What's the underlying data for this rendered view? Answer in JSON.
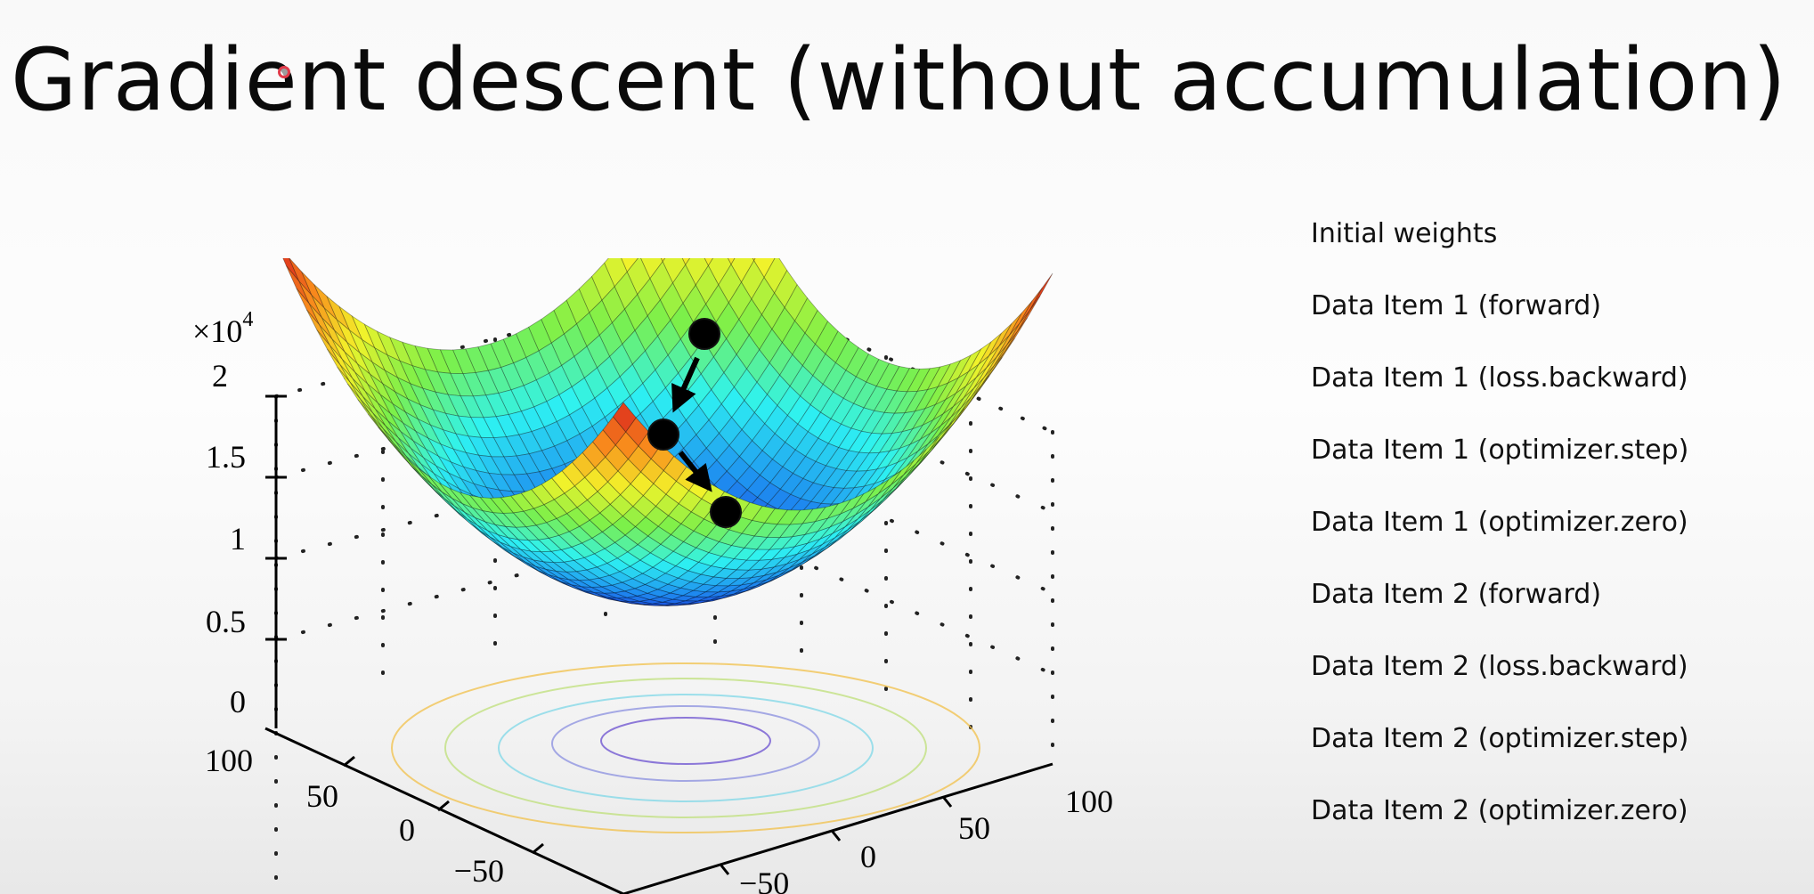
{
  "slide": {
    "title": "Gradient descent (without accumulation)"
  },
  "figure": {
    "z_multiplier": "×10",
    "z_exponent": "4",
    "z_ticks": [
      "2",
      "1.5",
      "1",
      "0.5",
      "0"
    ],
    "y_ticks": [
      "100",
      "50",
      "0",
      "−50"
    ],
    "x_ticks": [
      "−50",
      "0",
      "50",
      "100"
    ],
    "descent_points": 3,
    "colormap": [
      "#1a2bd9",
      "#1e8cf0",
      "#2ef2f2",
      "#7cf04a",
      "#f3f22a",
      "#f88a1c",
      "#d81d1d"
    ]
  },
  "steps": [
    "Initial weights",
    "Data Item 1 (forward)",
    "Data Item 1 (loss.backward)",
    "Data Item 1 (optimizer.step)",
    "Data Item 1 (optimizer.zero)",
    "Data Item 2 (forward)",
    "Data Item 2 (loss.backward)",
    "Data Item 2 (optimizer.step)",
    "Data Item 2 (optimizer.zero)"
  ]
}
